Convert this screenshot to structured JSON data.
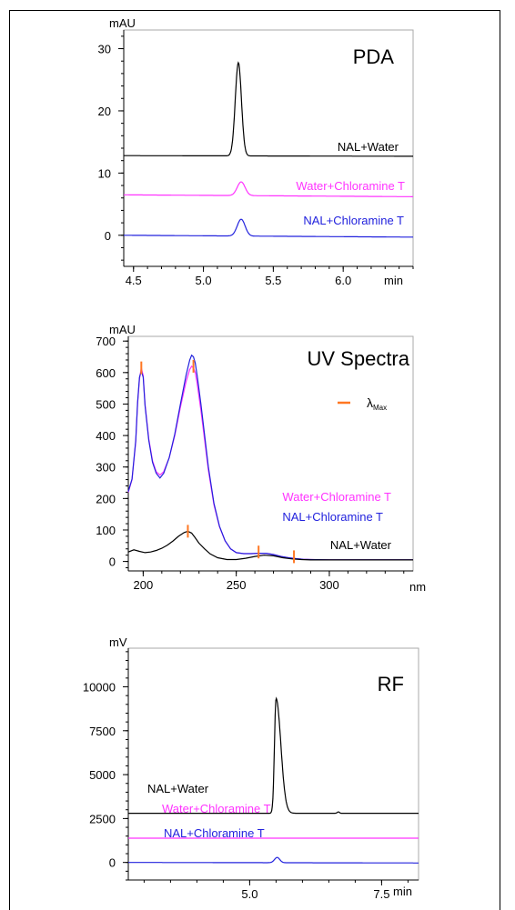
{
  "chart_data": [
    {
      "type": "line",
      "title": "PDA",
      "ylabel": "mAU",
      "xlabel": "min",
      "xlim": [
        4.43,
        6.5
      ],
      "ylim": [
        -5,
        33
      ],
      "xticks": [
        "4.5",
        "5.0",
        "5.5",
        "6.0"
      ],
      "yticks": [
        "0",
        "10",
        "20",
        "30"
      ],
      "series": [
        {
          "name": "NAL+Water",
          "color": "#000000",
          "baseline": 12.8,
          "baseline_end": 12.7,
          "peak_x": 5.25,
          "peak_h": 15.0,
          "width": 0.022
        },
        {
          "name": "Water+Chloramine T",
          "color": "#ff33ff",
          "baseline": 6.5,
          "baseline_end": 6.2,
          "peak_x": 5.27,
          "peak_h": 2.2,
          "width": 0.028
        },
        {
          "name": "NAL+Chloramine T",
          "color": "#2222dd",
          "baseline": 0.0,
          "baseline_end": -0.3,
          "peak_x": 5.27,
          "peak_h": 2.7,
          "width": 0.028
        }
      ]
    },
    {
      "type": "line",
      "title": "UV Spectra",
      "ylabel": "mAU",
      "xlabel": "nm",
      "xlim": [
        192,
        345
      ],
      "ylim": [
        -30,
        715
      ],
      "xticks": [
        "200",
        "250",
        "300"
      ],
      "yticks": [
        "0",
        "100",
        "200",
        "300",
        "400",
        "500",
        "600",
        "700"
      ],
      "legend_marker": "λ",
      "legend_marker_sub": "Max",
      "marker_color": "#ff7722",
      "series": [
        {
          "name": "Water+Chloramine T",
          "color": "#ff33ff",
          "x": [
            192,
            194,
            196,
            197,
            198,
            199,
            200,
            201,
            203,
            205,
            207,
            209,
            211,
            214,
            217,
            220,
            223,
            225,
            226,
            227,
            228,
            229,
            231,
            233,
            235,
            238,
            241,
            244,
            247,
            250,
            254,
            258,
            262,
            266,
            270,
            274,
            278,
            282,
            286,
            290,
            300,
            320,
            345
          ],
          "y": [
            220,
            260,
            380,
            500,
            580,
            615,
            590,
            500,
            390,
            320,
            285,
            275,
            285,
            330,
            400,
            490,
            570,
            610,
            620,
            615,
            600,
            565,
            480,
            385,
            290,
            180,
            110,
            65,
            40,
            28,
            25,
            25,
            26,
            26,
            22,
            16,
            12,
            9,
            7,
            6,
            5,
            5,
            5
          ],
          "markers": [
            [
              199,
              615
            ],
            [
              227,
              620
            ]
          ]
        },
        {
          "name": "NAL+Chloramine T",
          "color": "#2222dd",
          "x": [
            192,
            194,
            196,
            197,
            198,
            199,
            200,
            201,
            203,
            205,
            207,
            209,
            211,
            214,
            217,
            220,
            223,
            225,
            226,
            227,
            228,
            229,
            231,
            233,
            235,
            238,
            241,
            244,
            247,
            250,
            254,
            258,
            262,
            266,
            270,
            274,
            278,
            282,
            286,
            290,
            300,
            320,
            345
          ],
          "y": [
            222,
            262,
            385,
            505,
            585,
            605,
            585,
            495,
            385,
            315,
            280,
            265,
            280,
            330,
            405,
            500,
            590,
            640,
            655,
            650,
            630,
            590,
            500,
            400,
            300,
            185,
            112,
            66,
            40,
            28,
            25,
            25,
            26,
            26,
            22,
            16,
            12,
            9,
            7,
            6,
            5,
            5,
            5
          ],
          "markers": []
        },
        {
          "name": "NAL+Water",
          "color": "#000000",
          "x": [
            192,
            195,
            198,
            201,
            204,
            207,
            210,
            213,
            216,
            219,
            222,
            224,
            226,
            228,
            230,
            233,
            236,
            240,
            245,
            250,
            255,
            260,
            265,
            270,
            275,
            280,
            285,
            290,
            300,
            320,
            345
          ],
          "y": [
            30,
            37,
            32,
            28,
            30,
            35,
            42,
            52,
            65,
            80,
            92,
            96,
            90,
            75,
            58,
            40,
            24,
            12,
            6,
            6,
            10,
            16,
            20,
            18,
            12,
            8,
            6,
            5,
            5,
            5,
            5
          ],
          "markers": [
            [
              224,
              96
            ],
            [
              262,
              30
            ],
            [
              281,
              15
            ]
          ]
        }
      ]
    },
    {
      "type": "line",
      "title": "RF",
      "ylabel": "mV",
      "xlabel": "min",
      "xlim": [
        2.7,
        8.2
      ],
      "ylim": [
        -1000,
        12200
      ],
      "xticks": [
        "5.0",
        "7.5"
      ],
      "yticks": [
        "0",
        "2500",
        "5000",
        "7500",
        "10000"
      ],
      "series": [
        {
          "name": "NAL+Water",
          "color": "#000000",
          "baseline": 2800,
          "baseline_end": 2800,
          "peak_x": 5.5,
          "peak_h": 6550,
          "width": 0.03,
          "tail": 0.09,
          "bump_x": 6.68,
          "bump_h": 80
        },
        {
          "name": "Water+Chloramine T",
          "color": "#ff33ff",
          "baseline": 1380,
          "baseline_end": 1380,
          "peak_x": 0,
          "peak_h": 0,
          "width": 0.03
        },
        {
          "name": "NAL+Chloramine T",
          "color": "#2222dd",
          "baseline": 0,
          "baseline_end": -30,
          "peak_x": 5.52,
          "peak_h": 300,
          "width": 0.05
        }
      ]
    }
  ]
}
